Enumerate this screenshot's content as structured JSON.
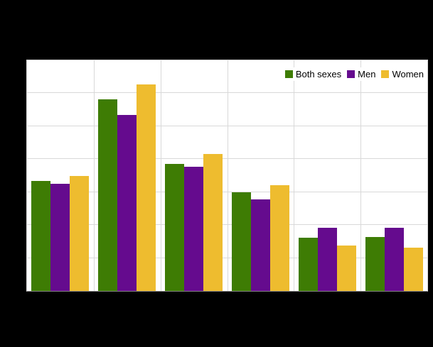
{
  "chart_data": {
    "type": "bar",
    "categories": [
      "",
      "",
      "",
      "",
      "",
      ""
    ],
    "series": [
      {
        "name": "Both sexes",
        "color": "#3e7c04",
        "values": [
          16.7,
          29.1,
          19.3,
          15.0,
          8.1,
          8.2
        ]
      },
      {
        "name": "Men",
        "color": "#650b8e",
        "values": [
          16.3,
          26.7,
          18.8,
          13.9,
          9.6,
          9.6
        ]
      },
      {
        "name": "Women",
        "color": "#eebc2f",
        "values": [
          17.4,
          31.3,
          20.8,
          16.1,
          6.9,
          6.6
        ]
      }
    ],
    "title": "",
    "xlabel": "",
    "ylabel": "",
    "ylim": [
      0,
      35
    ],
    "y_gridline_step": 5,
    "grid": true,
    "legend_position": "top-right",
    "background": "#000000",
    "plot_background": "#ffffff",
    "gridline_color": "#d9d9d9",
    "axis_color": "#808080"
  }
}
